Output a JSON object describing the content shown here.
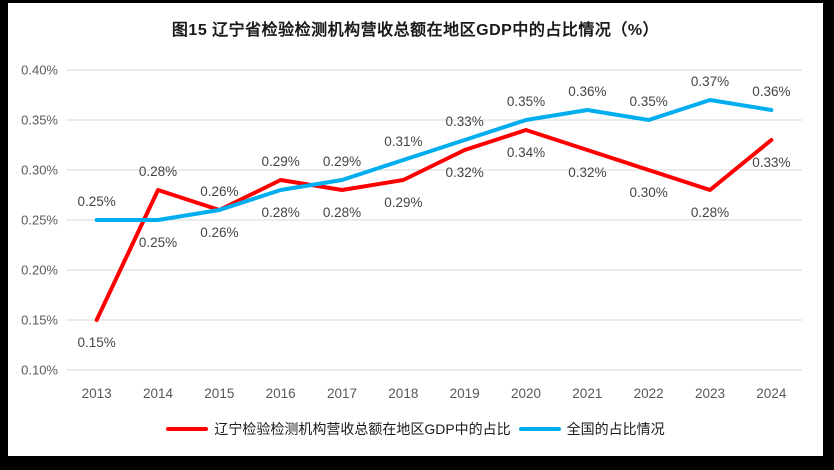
{
  "title": "图15 辽宁省检验检测机构营收总额在地区GDP中的占比情况（%）",
  "chart_data": {
    "type": "line",
    "title": "图15 辽宁省检验检测机构营收总额在地区GDP中的占比情况（%）",
    "categories": [
      "2013",
      "2014",
      "2015",
      "2016",
      "2017",
      "2018",
      "2019",
      "2020",
      "2021",
      "2022",
      "2023",
      "2024"
    ],
    "series": [
      {
        "name": "辽宁检验检测机构营收总额在地区GDP中的占比",
        "color": "#FF0000",
        "values": [
          0.15,
          0.28,
          0.26,
          0.29,
          0.28,
          0.29,
          0.32,
          0.34,
          0.32,
          0.3,
          0.28,
          0.33
        ],
        "labels": [
          "0.15%",
          "0.28%",
          "0.26%",
          "0.29%",
          "0.28%",
          "0.29%",
          "0.32%",
          "0.34%",
          "0.32%",
          "0.30%",
          "0.28%",
          "0.33%"
        ],
        "label_positions": [
          "below",
          "above",
          "above",
          "above",
          "below",
          "below",
          "below",
          "below",
          "below",
          "below",
          "below",
          "below"
        ]
      },
      {
        "name": "全国的占比情况",
        "color": "#00AEEF",
        "values": [
          0.25,
          0.25,
          0.26,
          0.28,
          0.29,
          0.31,
          0.33,
          0.35,
          0.36,
          0.35,
          0.37,
          0.36
        ],
        "labels": [
          "0.25%",
          "0.25%",
          "0.26%",
          "0.28%",
          "0.29%",
          "0.31%",
          "0.33%",
          "0.35%",
          "0.36%",
          "0.35%",
          "0.37%",
          "0.36%"
        ],
        "label_positions": [
          "above",
          "below",
          "below",
          "below",
          "above",
          "above",
          "above",
          "above",
          "above",
          "above",
          "above",
          "above"
        ]
      }
    ],
    "xlabel": "",
    "ylabel": "",
    "ylim": [
      0.1,
      0.4
    ],
    "ytick_step": 0.05,
    "ytick_labels": [
      "0.10%",
      "0.15%",
      "0.20%",
      "0.25%",
      "0.30%",
      "0.35%",
      "0.40%"
    ],
    "grid": true,
    "legend_position": "bottom",
    "colors": {
      "gridline": "#D9D9D9",
      "axis_text": "#595959",
      "data_label": "#444444",
      "frame": "#000000",
      "background": "#FFFFFF"
    }
  }
}
